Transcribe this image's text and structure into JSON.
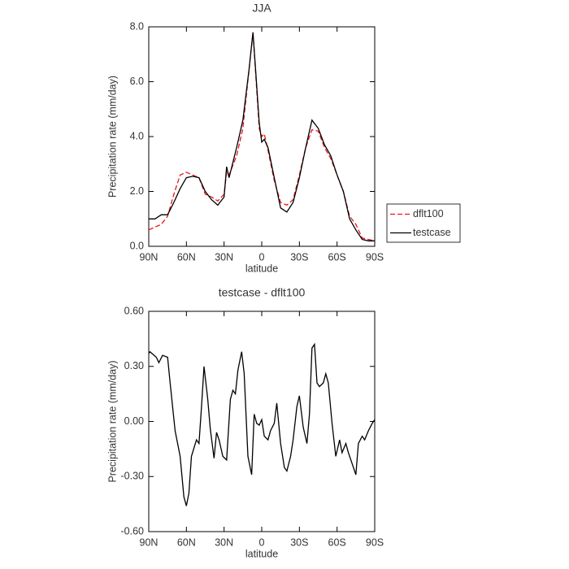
{
  "chart_data": [
    {
      "type": "line",
      "title": "JJA",
      "xlabel": "latitude",
      "ylabel": "Precipitation rate (mm/day)",
      "x": [
        90,
        85,
        80,
        75,
        70,
        65,
        60,
        55,
        50,
        45,
        40,
        35,
        30,
        28,
        26,
        20,
        15,
        10,
        7,
        5,
        2,
        0,
        -2,
        -5,
        -10,
        -15,
        -20,
        -25,
        -30,
        -35,
        -40,
        -45,
        -50,
        -55,
        -60,
        -65,
        -70,
        -75,
        -80,
        -85,
        -90
      ],
      "series": [
        {
          "name": "dflt100",
          "color": "#e8141b",
          "style": "dashed",
          "values": [
            0.6,
            0.7,
            0.8,
            1.1,
            1.9,
            2.6,
            2.7,
            2.6,
            2.5,
            1.9,
            1.8,
            1.65,
            1.9,
            2.7,
            2.6,
            3.3,
            4.3,
            6.5,
            7.8,
            6.4,
            4.3,
            4.0,
            4.1,
            3.5,
            2.4,
            1.6,
            1.5,
            1.7,
            2.6,
            3.6,
            4.25,
            4.2,
            3.6,
            3.2,
            2.6,
            2.0,
            1.1,
            0.8,
            0.3,
            0.25,
            0.2
          ]
        },
        {
          "name": "testcase",
          "color": "#000000",
          "style": "solid",
          "values": [
            1.0,
            1.0,
            1.15,
            1.15,
            1.6,
            2.1,
            2.5,
            2.55,
            2.5,
            2.0,
            1.7,
            1.5,
            1.8,
            2.9,
            2.5,
            3.6,
            4.6,
            6.5,
            7.8,
            6.5,
            4.5,
            3.8,
            3.9,
            3.6,
            2.5,
            1.4,
            1.25,
            1.6,
            2.5,
            3.6,
            4.6,
            4.3,
            3.7,
            3.3,
            2.6,
            2.0,
            1.0,
            0.6,
            0.25,
            0.2,
            0.2
          ]
        }
      ],
      "xlim": [
        90,
        -90
      ],
      "xticks": [
        {
          "value": 90,
          "label": "90N"
        },
        {
          "value": 60,
          "label": "60N"
        },
        {
          "value": 30,
          "label": "30N"
        },
        0,
        {
          "value": -30,
          "label": "30S"
        },
        {
          "value": -60,
          "label": "60S"
        },
        {
          "value": -90,
          "label": "90S"
        }
      ],
      "ylim": [
        0,
        8
      ],
      "yticks": [
        {
          "value": 0,
          "label": "0.0"
        },
        {
          "value": 2,
          "label": "2.0"
        },
        {
          "value": 4,
          "label": "4.0"
        },
        {
          "value": 6,
          "label": "6.0"
        },
        {
          "value": 8,
          "label": "8.0"
        }
      ],
      "legend": "right"
    },
    {
      "type": "line",
      "title": "testcase - dflt100",
      "xlabel": "latitude",
      "ylabel": "Precipitation rate (mm/day)",
      "x": [
        90,
        89,
        84,
        82,
        79,
        75,
        73,
        69,
        65,
        62,
        60,
        58,
        56,
        52,
        50,
        48,
        46,
        43,
        41,
        38,
        36,
        34,
        31,
        28,
        25,
        23,
        21,
        19,
        16,
        14,
        11,
        8,
        6,
        4,
        2,
        0,
        -2,
        -5,
        -7,
        -10,
        -12,
        -15,
        -18,
        -20,
        -23,
        -25,
        -28,
        -30,
        -33,
        -36,
        -38,
        -40,
        -42,
        -44,
        -46,
        -49,
        -51,
        -53,
        -56,
        -59,
        -62,
        -64,
        -67,
        -69,
        -72,
        -75,
        -77,
        -80,
        -82,
        -85,
        -88,
        -90
      ],
      "values": [
        0.37,
        0.38,
        0.35,
        0.32,
        0.36,
        0.35,
        0.21,
        -0.05,
        -0.19,
        -0.41,
        -0.46,
        -0.39,
        -0.19,
        -0.1,
        -0.12,
        0.08,
        0.3,
        0.12,
        -0.04,
        -0.2,
        -0.06,
        -0.1,
        -0.19,
        -0.21,
        0.12,
        0.17,
        0.15,
        0.28,
        0.38,
        0.26,
        -0.19,
        -0.29,
        0.04,
        -0.01,
        -0.02,
        0.01,
        -0.08,
        -0.1,
        -0.05,
        -0.01,
        0.1,
        -0.12,
        -0.25,
        -0.27,
        -0.19,
        -0.1,
        0.08,
        0.14,
        -0.03,
        -0.12,
        0.04,
        0.4,
        0.42,
        0.21,
        0.19,
        0.21,
        0.26,
        0.21,
        -0.01,
        -0.19,
        -0.1,
        -0.17,
        -0.12,
        -0.17,
        -0.23,
        -0.29,
        -0.12,
        -0.08,
        -0.1,
        -0.05,
        -0.01,
        0.01
      ],
      "color": "#000000",
      "xlim": [
        90,
        -90
      ],
      "xticks": [
        {
          "value": 90,
          "label": "90N"
        },
        {
          "value": 60,
          "label": "60N"
        },
        {
          "value": 30,
          "label": "30N"
        },
        0,
        {
          "value": -30,
          "label": "30S"
        },
        {
          "value": -60,
          "label": "60S"
        },
        {
          "value": -90,
          "label": "90S"
        }
      ],
      "ylim": [
        -0.6,
        0.6
      ],
      "yticks": [
        {
          "value": -0.6,
          "label": "-0.60"
        },
        {
          "value": -0.3,
          "label": "-0.30"
        },
        {
          "value": 0,
          "label": "0.00"
        },
        {
          "value": 0.3,
          "label": "0.30"
        },
        {
          "value": 0.6,
          "label": "0.60"
        }
      ]
    }
  ]
}
